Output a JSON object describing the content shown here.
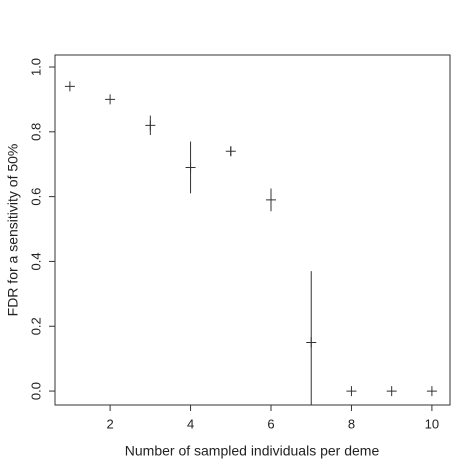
{
  "chart_data": {
    "type": "errorbar",
    "x_label": "Number of sampled individuals per deme",
    "y_label": "FDR for a sensitivity of 50%",
    "x": [
      1,
      2,
      3,
      4,
      5,
      6,
      7,
      8,
      9,
      10
    ],
    "values": [
      0.94,
      0.9,
      0.82,
      0.69,
      0.74,
      0.59,
      0.15,
      0,
      0,
      0
    ],
    "errors": [
      0,
      0,
      0.03,
      0.08,
      0.015,
      0.035,
      0.22,
      0,
      0,
      0
    ],
    "color": "#333333",
    "xlim": [
      0.63,
      10.45
    ],
    "ylim": [
      -0.043,
      1.037
    ],
    "xticks": [
      2,
      4,
      6,
      8,
      10
    ],
    "yticks": [
      {
        "value": 0,
        "label": "0.0"
      },
      {
        "value": 0.2,
        "label": "0.2"
      },
      {
        "value": 0.4,
        "label": "0.4"
      },
      {
        "value": 0.6,
        "label": "0.6"
      },
      {
        "value": 0.8,
        "label": "0.8"
      },
      {
        "value": 1,
        "label": "1.0"
      }
    ]
  }
}
